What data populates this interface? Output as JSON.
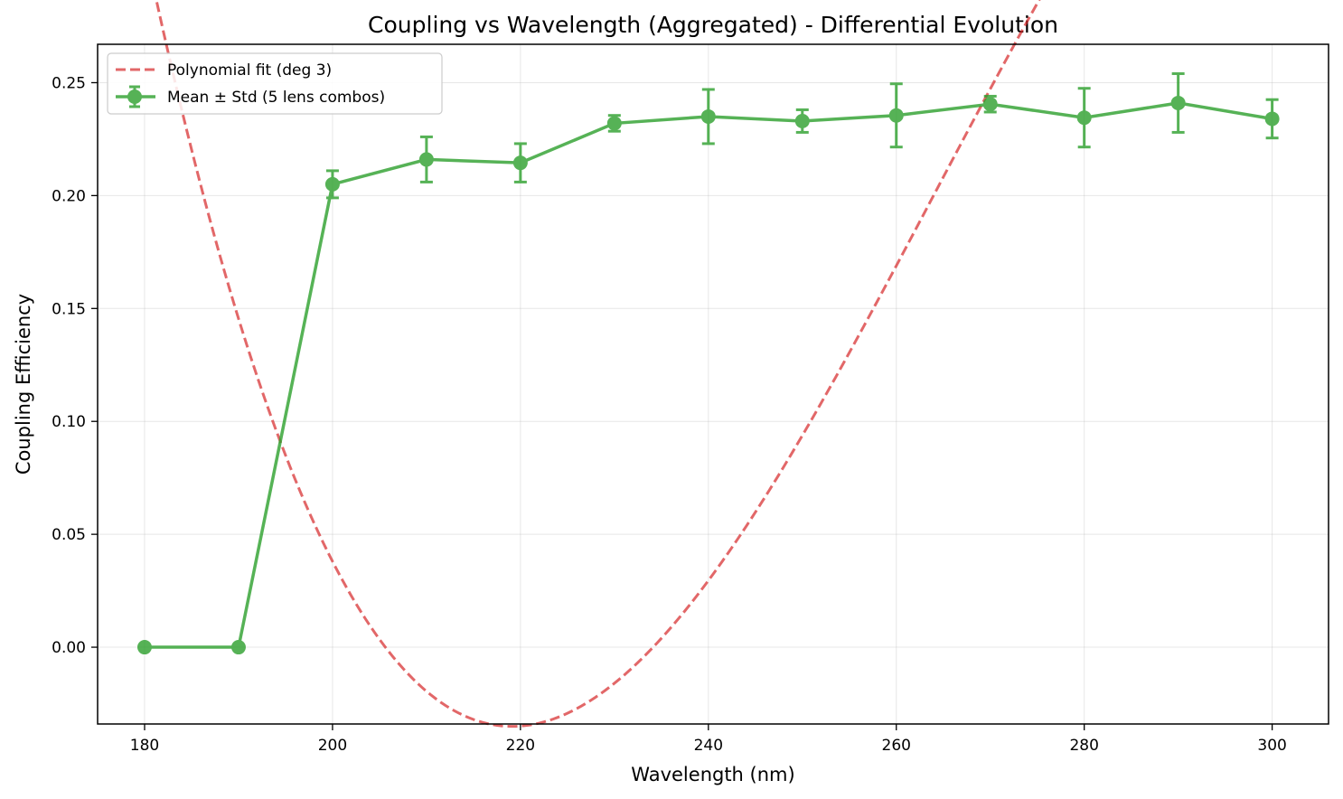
{
  "chart_data": {
    "type": "line",
    "title": "Coupling vs Wavelength (Aggregated) - Differential Evolution",
    "xlabel": "Wavelength (nm)",
    "ylabel": "Coupling Efficiency",
    "xlim": [
      175,
      306
    ],
    "ylim": [
      -0.034,
      0.267
    ],
    "xticks": [
      180,
      200,
      220,
      240,
      260,
      280,
      300
    ],
    "xtick_labels": [
      "180",
      "200",
      "220",
      "240",
      "260",
      "280",
      "300"
    ],
    "yticks": [
      0.0,
      0.05,
      0.1,
      0.15,
      0.2,
      0.25
    ],
    "ytick_labels": [
      "0.00",
      "0.05",
      "0.10",
      "0.15",
      "0.20",
      "0.25"
    ],
    "grid": true,
    "legend_position": "top-left",
    "series": [
      {
        "name": "Polynomial fit (deg 3)",
        "kind": "dashed-line",
        "color": "#d62728",
        "coefficients_desc": [
          -1.3e-06,
          0.0010297,
          -0.264,
          22.05
        ],
        "x_range": [
          180,
          300
        ]
      },
      {
        "name": "Mean ± Std (5 lens combos)",
        "kind": "errorbar-line",
        "color": "#2ca02c",
        "x": [
          180,
          190,
          200,
          210,
          220,
          230,
          240,
          250,
          260,
          270,
          280,
          290,
          300
        ],
        "y": [
          0.0,
          0.0,
          0.205,
          0.216,
          0.2145,
          0.232,
          0.235,
          0.233,
          0.2355,
          0.2405,
          0.2345,
          0.241,
          0.234
        ],
        "yerr": [
          0.0,
          0.0,
          0.006,
          0.01,
          0.0085,
          0.0035,
          0.012,
          0.005,
          0.014,
          0.0035,
          0.013,
          0.013,
          0.0085
        ]
      }
    ]
  }
}
